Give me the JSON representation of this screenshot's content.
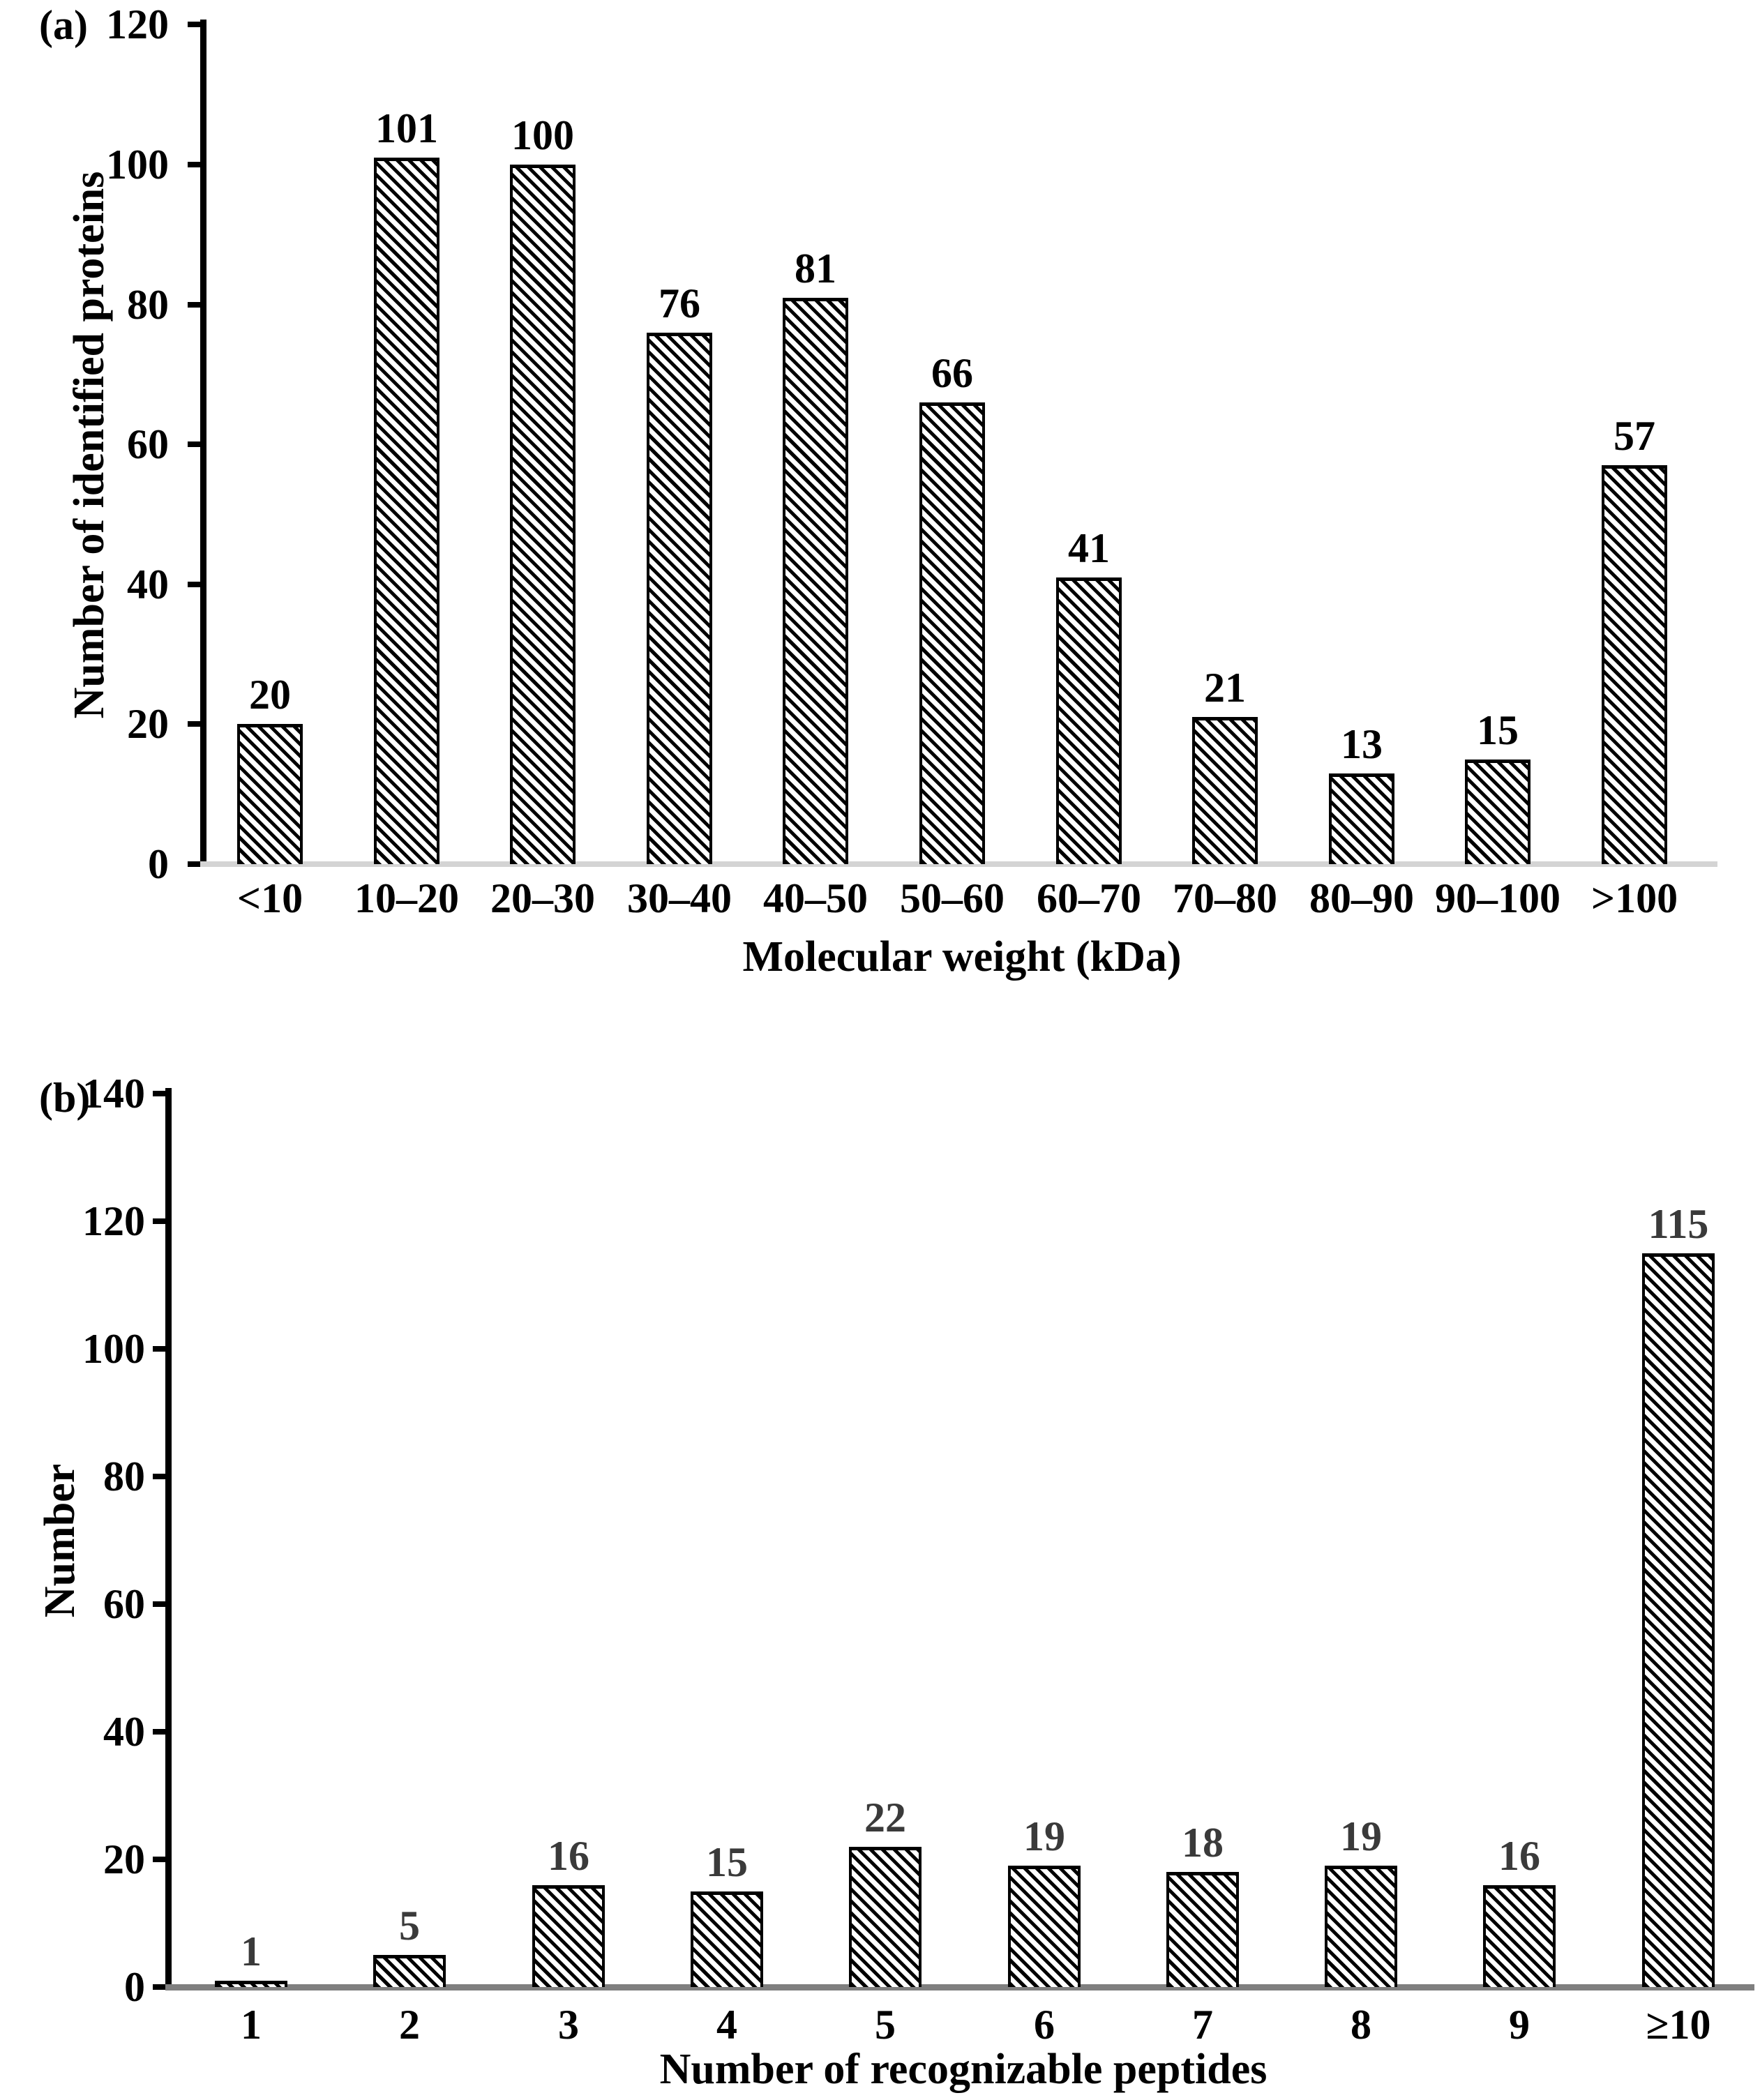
{
  "chart_data": [
    {
      "type": "bar",
      "panel": "(a)",
      "title": "",
      "xlabel": "Molecular weight (kDa)",
      "ylabel": "Number of identified proteins",
      "categories": [
        "<10",
        "10–20",
        "20–30",
        "30–40",
        "40–50",
        "50–60",
        "60–70",
        "70–80",
        "80–90",
        "90–100",
        ">100"
      ],
      "values": [
        20,
        101,
        100,
        76,
        81,
        66,
        41,
        21,
        13,
        15,
        57
      ],
      "ylim": [
        0,
        120
      ],
      "ytick_step": 20,
      "yticks": [
        0,
        20,
        40,
        60,
        80,
        100,
        120
      ],
      "grid": false,
      "legend": "none",
      "bar_style": "white bars with black diagonal hatch (\\ direction), black outline",
      "value_labels_shown": true,
      "value_label_color": "#000000",
      "baseline_color": "#d4d4d4"
    },
    {
      "type": "bar",
      "panel": "(b)",
      "title": "",
      "xlabel": "Number of recognizable peptides",
      "ylabel": "Number",
      "categories": [
        "1",
        "2",
        "3",
        "4",
        "5",
        "6",
        "7",
        "8",
        "9",
        "≥10"
      ],
      "values": [
        1,
        5,
        16,
        15,
        22,
        19,
        18,
        19,
        16,
        115
      ],
      "ylim": [
        0,
        140
      ],
      "ytick_step": 20,
      "yticks": [
        0,
        20,
        40,
        60,
        80,
        100,
        120,
        140
      ],
      "grid": false,
      "legend": "none",
      "bar_style": "white bars with black diagonal hatch (\\ direction), black outline",
      "value_labels_shown": true,
      "value_label_color": "#3a3a3a",
      "baseline_color": "#7f7f7f"
    }
  ]
}
